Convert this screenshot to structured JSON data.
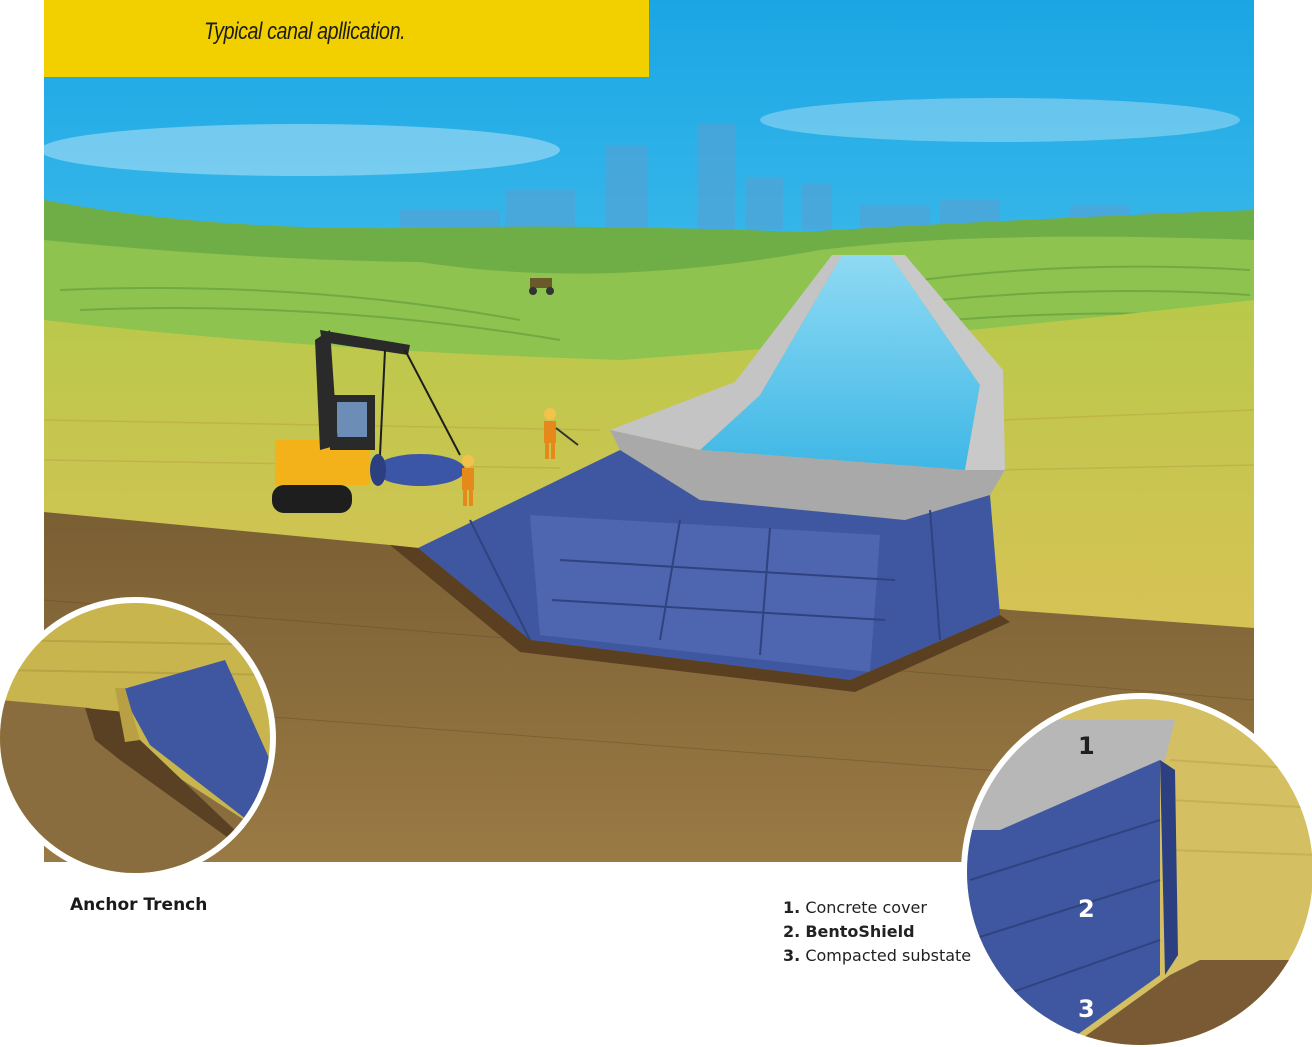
{
  "banner": {
    "title": "Typical canal apllication."
  },
  "details": {
    "left_caption": "Anchor Trench",
    "callout_labels": [
      "1",
      "2",
      "3"
    ],
    "legend": [
      {
        "num": "1.",
        "text": "Concrete cover"
      },
      {
        "num": "2.",
        "text": "BentoShield"
      },
      {
        "num": "3.",
        "text": "Compacted substate"
      }
    ]
  },
  "colors": {
    "banner": "#f2d000",
    "sky": "#2fb6ea",
    "liner": "#3f57a0",
    "water": "#57c9f0",
    "concrete": "#b8b8b8",
    "soil": "#8a6a3c",
    "field": "#c8b84a"
  }
}
